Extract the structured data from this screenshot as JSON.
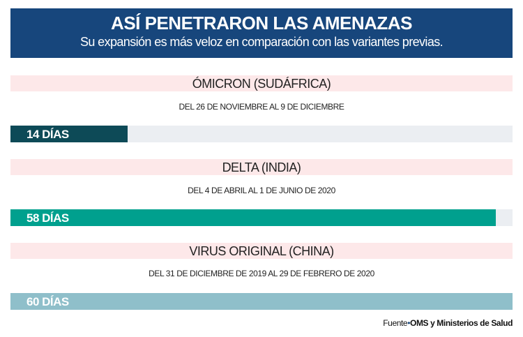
{
  "header": {
    "title": "ASÍ PENETRARON LAS AMENAZAS",
    "subtitle": "Su expansión es más veloz en comparación con las variantes previas."
  },
  "variants": [
    {
      "name": "ÓMICRON (SUDÁFRICA)",
      "range": "DEL 26 DE NOVIEMBRE AL 9 DE DICIEMBRE",
      "label": "14 DÍAS",
      "days": 14,
      "color": "#0d4a57"
    },
    {
      "name": "DELTA (INDIA)",
      "range": "DEL 4 DE ABRIL AL 1 DE JUNIO DE 2020",
      "label": "58 DÍAS",
      "days": 58,
      "color": "#00a08e"
    },
    {
      "name": "VIRUS ORIGINAL (CHINA)",
      "range": "DEL 31 DE DICIEMBRE DE 2019 AL 29 DE FEBRERO DE 2020",
      "label": "60 DÍAS",
      "days": 60,
      "color": "#8fbfca"
    }
  ],
  "source": {
    "prefix": "Fuente",
    "separator": "•",
    "text": "OMS y Ministerios de Salud"
  },
  "chart_data": {
    "type": "bar",
    "orientation": "horizontal",
    "title": "ASÍ PENETRARON LAS AMENAZAS",
    "subtitle": "Su expansión es más veloz en comparación con las variantes previas.",
    "categories": [
      "ÓMICRON (SUDÁFRICA)",
      "DELTA (INDIA)",
      "VIRUS ORIGINAL (CHINA)"
    ],
    "values": [
      14,
      58,
      60
    ],
    "unit": "días",
    "data_labels": [
      "14 DÍAS",
      "58 DÍAS",
      "60 DÍAS"
    ],
    "date_ranges": [
      "DEL 26 DE NOVIEMBRE AL 9 DE DICIEMBRE",
      "DEL 4 DE ABRIL AL 1 DE JUNIO DE 2020",
      "DEL 31 DE DICIEMBRE DE 2019 AL 29 DE FEBRERO DE 2020"
    ],
    "colors": [
      "#0d4a57",
      "#00a08e",
      "#8fbfca"
    ],
    "xlim": [
      0,
      60
    ],
    "grid": false,
    "legend": null,
    "source": "Fuente: OMS y Ministerios de Salud"
  }
}
